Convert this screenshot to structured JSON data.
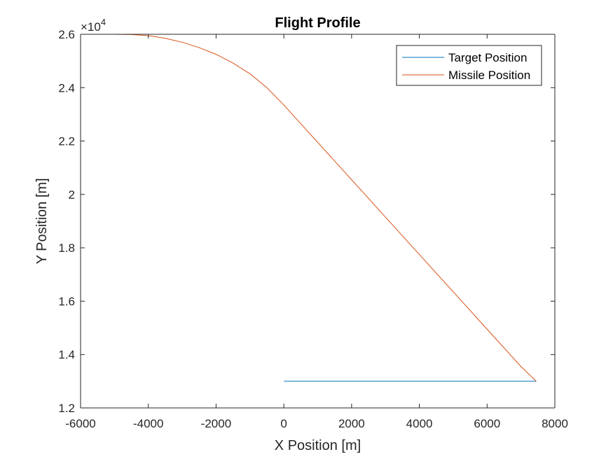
{
  "chart_data": {
    "type": "line",
    "title": "Flight Profile",
    "xlabel": "X Position [m]",
    "ylabel": "Y Position [m]",
    "xlim": [
      -6000,
      8000
    ],
    "ylim": [
      12000,
      26000
    ],
    "x_ticks": [
      -6000,
      -4000,
      -2000,
      0,
      2000,
      4000,
      6000,
      8000
    ],
    "x_tick_labels": [
      "-6000",
      "-4000",
      "-2000",
      "0",
      "2000",
      "4000",
      "6000",
      "8000"
    ],
    "y_ticks": [
      12000,
      14000,
      16000,
      18000,
      20000,
      22000,
      24000,
      26000
    ],
    "y_tick_labels": [
      "1.2",
      "1.4",
      "1.6",
      "1.8",
      "2",
      "2.2",
      "2.4",
      "2.6"
    ],
    "y_exponent_base": "×10",
    "y_exponent_power": "4",
    "grid": false,
    "legend_position": "top-right",
    "series": [
      {
        "name": "Target Position",
        "color": "#0072BD",
        "x": [
          0,
          7450
        ],
        "y": [
          13000,
          13000
        ]
      },
      {
        "name": "Missile Position",
        "color": "#D95319",
        "x": [
          -5000,
          -4500,
          -4000,
          -3500,
          -3000,
          -2500,
          -2000,
          -1500,
          -1000,
          -500,
          0,
          500,
          1000,
          1500,
          2000,
          3000,
          4000,
          5000,
          6000,
          7000,
          7450
        ],
        "y": [
          26000,
          25990,
          25950,
          25850,
          25700,
          25500,
          25250,
          24920,
          24520,
          24000,
          23350,
          22650,
          21950,
          21250,
          20550,
          19150,
          17750,
          16350,
          14950,
          13550,
          13000
        ]
      }
    ]
  }
}
